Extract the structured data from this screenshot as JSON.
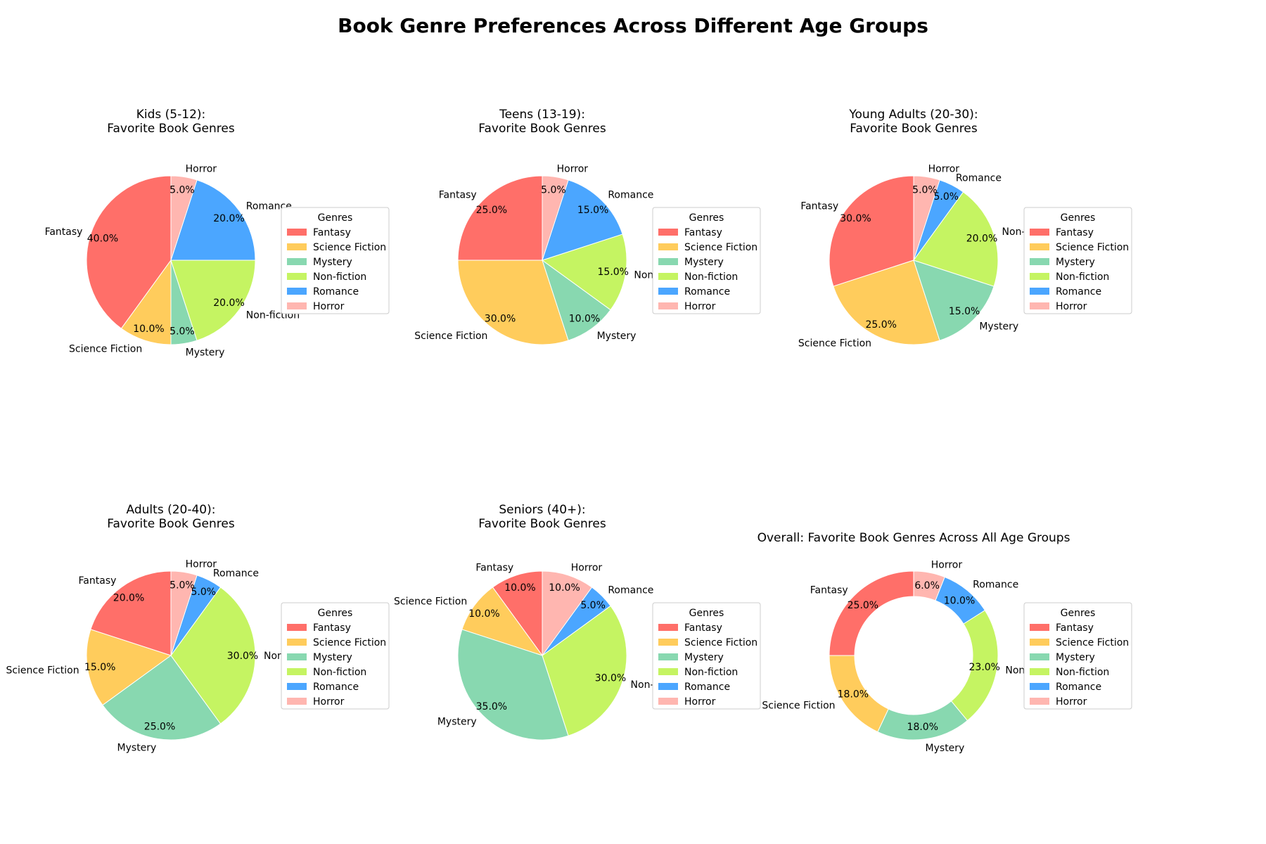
{
  "figure": {
    "title": "Book Genre Preferences Across Different Age Groups"
  },
  "chart_data": [
    {
      "type": "pie",
      "title": "Kids (5-12):\nFavorite Book Genres",
      "categories": [
        "Fantasy",
        "Science Fiction",
        "Mystery",
        "Non-fiction",
        "Romance",
        "Horror"
      ],
      "values": [
        40,
        10,
        5,
        20,
        20,
        5
      ],
      "legend_title": "Genres",
      "legend_placement": "right",
      "donut": false
    },
    {
      "type": "pie",
      "title": "Teens (13-19):\nFavorite Book Genres",
      "categories": [
        "Fantasy",
        "Science Fiction",
        "Mystery",
        "Non-fiction",
        "Romance",
        "Horror"
      ],
      "values": [
        25,
        30,
        10,
        15,
        15,
        5
      ],
      "legend_title": "Genres",
      "legend_placement": "right",
      "donut": false
    },
    {
      "type": "pie",
      "title": "Young Adults (20-30):\nFavorite Book Genres",
      "categories": [
        "Fantasy",
        "Science Fiction",
        "Mystery",
        "Non-fiction",
        "Romance",
        "Horror"
      ],
      "values": [
        30,
        25,
        15,
        20,
        5,
        5
      ],
      "legend_title": "Genres",
      "legend_placement": "right",
      "donut": false
    },
    {
      "type": "pie",
      "title": "Adults (20-40):\nFavorite Book Genres",
      "categories": [
        "Fantasy",
        "Science Fiction",
        "Mystery",
        "Non-fiction",
        "Romance",
        "Horror"
      ],
      "values": [
        20,
        15,
        25,
        30,
        5,
        5
      ],
      "legend_title": "Genres",
      "legend_placement": "right",
      "donut": false
    },
    {
      "type": "pie",
      "title": "Seniors (40+):\nFavorite Book Genres",
      "categories": [
        "Fantasy",
        "Science Fiction",
        "Mystery",
        "Non-fiction",
        "Romance",
        "Horror"
      ],
      "values": [
        10,
        10,
        35,
        30,
        5,
        10
      ],
      "legend_title": "Genres",
      "legend_placement": "right",
      "donut": false
    },
    {
      "type": "pie",
      "title": "Overall: Favorite Book Genres Across All Age Groups",
      "categories": [
        "Fantasy",
        "Science Fiction",
        "Mystery",
        "Non-fiction",
        "Romance",
        "Horror"
      ],
      "values": [
        25,
        18,
        18,
        23,
        10,
        6
      ],
      "legend_title": "Genres",
      "legend_placement": "right",
      "donut": true
    }
  ],
  "colors": {
    "Fantasy": "#FF6F69",
    "Science Fiction": "#FFCC5C",
    "Mystery": "#88D8B0",
    "Non-fiction": "#C5F462",
    "Romance": "#4BA6FF",
    "Horror": "#FFB6B0"
  }
}
